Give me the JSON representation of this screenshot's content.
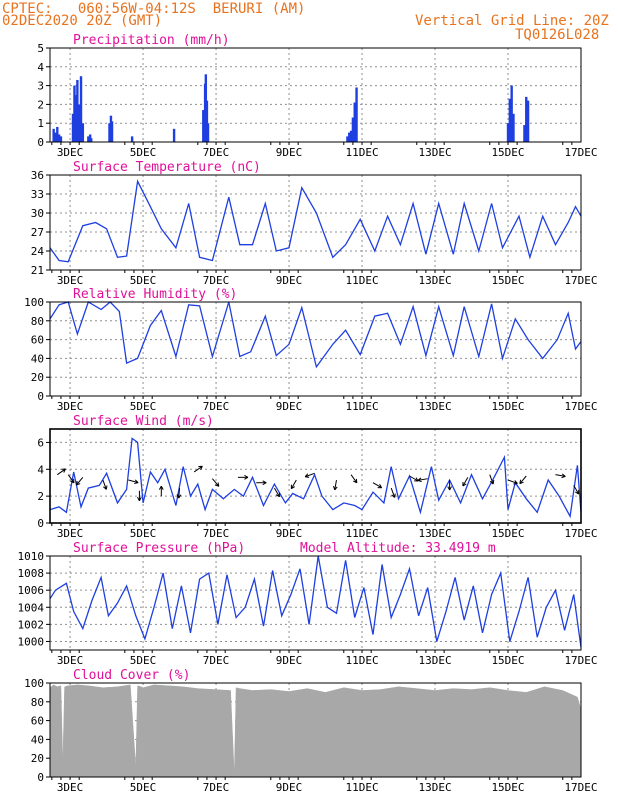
{
  "header": {
    "line1": "CPTEC:   060:56W-04:12S  BERURI (AM)",
    "line2": "02DEC2020 20Z (GMT)",
    "grid_note": "Vertical Grid Line: 20Z",
    "code": "TQ0126L028"
  },
  "colors": {
    "header": "#e8731f",
    "title": "#e0109a",
    "series": "#1f3fe0",
    "cloud": "#a8a8a8",
    "grid": "#909090"
  },
  "x_ticks": [
    "3DEC",
    "5DEC",
    "7DEC",
    "9DEC",
    "11DEC",
    "13DEC",
    "15DEC",
    "17DEC"
  ],
  "chart_data": [
    {
      "type": "bar",
      "title": "Precipitation (mm/h)",
      "ylim": [
        0,
        5
      ],
      "yticks": [
        "0",
        "1",
        "2",
        "3",
        "4",
        "5"
      ],
      "x_range_days": [
        2.45,
        17.0
      ],
      "x": [
        2.55,
        2.6,
        2.65,
        2.7,
        2.75,
        3.08,
        3.12,
        3.15,
        3.18,
        3.2,
        3.25,
        3.3,
        3.35,
        3.5,
        3.55,
        3.58,
        4.08,
        4.12,
        4.15,
        4.7,
        5.85,
        6.65,
        6.7,
        6.72,
        6.75,
        6.78,
        10.6,
        10.65,
        10.7,
        10.75,
        10.8,
        10.85,
        15.0,
        15.05,
        15.1,
        15.15,
        15.45,
        15.5,
        15.55
      ],
      "values": [
        0.7,
        0.5,
        0.8,
        0.4,
        0.3,
        1.5,
        3.0,
        2.5,
        1.2,
        3.3,
        2.0,
        3.5,
        1.0,
        0.3,
        0.4,
        0.2,
        1.0,
        1.4,
        1.1,
        0.3,
        0.7,
        1.7,
        3.1,
        3.6,
        2.2,
        1.0,
        0.3,
        0.5,
        0.6,
        1.3,
        2.1,
        2.9,
        1.0,
        2.3,
        3.0,
        1.5,
        0.9,
        2.4,
        2.2
      ],
      "grid": true
    },
    {
      "type": "line",
      "title": "Surface Temperature (nC)",
      "ylim": [
        21,
        36
      ],
      "yticks": [
        "21",
        "24",
        "27",
        "30",
        "33",
        "36"
      ],
      "x": [
        2.45,
        2.7,
        2.95,
        3.35,
        3.7,
        4.0,
        4.3,
        4.55,
        4.85,
        5.2,
        5.5,
        5.9,
        6.25,
        6.55,
        6.9,
        7.35,
        7.65,
        8.0,
        8.35,
        8.65,
        9.0,
        9.35,
        9.75,
        10.2,
        10.55,
        10.95,
        11.35,
        11.7,
        12.05,
        12.4,
        12.75,
        13.1,
        13.5,
        13.8,
        14.2,
        14.55,
        14.85,
        15.3,
        15.6,
        15.95,
        16.3,
        16.65,
        16.85,
        17.0
      ],
      "values": [
        24.5,
        22.5,
        22.3,
        28.0,
        28.5,
        27.5,
        23.0,
        23.2,
        35.0,
        31.0,
        27.5,
        24.5,
        31.5,
        23.0,
        22.5,
        32.5,
        25.0,
        25.0,
        31.5,
        24.0,
        24.5,
        34.0,
        30.0,
        23.0,
        25.0,
        29.0,
        24.0,
        29.5,
        25.0,
        31.5,
        23.5,
        31.5,
        23.5,
        31.5,
        24.0,
        31.5,
        24.5,
        29.5,
        23.0,
        29.5,
        25.0,
        28.5,
        31.0,
        29.5
      ],
      "grid": true
    },
    {
      "type": "line",
      "title": "Relative Humidity (%)",
      "ylim": [
        0,
        100
      ],
      "yticks": [
        "0",
        "20",
        "40",
        "60",
        "80",
        "100"
      ],
      "x": [
        2.45,
        2.7,
        2.95,
        3.2,
        3.5,
        3.85,
        4.1,
        4.35,
        4.55,
        4.85,
        5.2,
        5.5,
        5.9,
        6.25,
        6.55,
        6.9,
        7.35,
        7.65,
        7.95,
        8.35,
        8.65,
        9.0,
        9.35,
        9.75,
        10.2,
        10.55,
        10.95,
        11.35,
        11.7,
        12.05,
        12.4,
        12.75,
        13.1,
        13.5,
        13.8,
        14.2,
        14.55,
        14.85,
        15.2,
        15.55,
        15.95,
        16.35,
        16.65,
        16.85,
        17.0
      ],
      "values": [
        82,
        97,
        100,
        66,
        100,
        92,
        100,
        90,
        35,
        40,
        75,
        91,
        42,
        97,
        96,
        42,
        100,
        42,
        47,
        85,
        43,
        55,
        94,
        31,
        55,
        70,
        44,
        85,
        88,
        55,
        95,
        43,
        95,
        43,
        95,
        42,
        98,
        40,
        82,
        60,
        40,
        60,
        88,
        50,
        58
      ],
      "grid": true
    },
    {
      "type": "line",
      "title": "Surface Wind (m/s)",
      "ylim": [
        0,
        7
      ],
      "yticks": [
        "0",
        "2",
        "4",
        "6"
      ],
      "x": [
        2.45,
        2.7,
        2.9,
        3.1,
        3.3,
        3.5,
        3.8,
        4.0,
        4.3,
        4.55,
        4.7,
        4.85,
        5.0,
        5.2,
        5.4,
        5.6,
        5.9,
        6.1,
        6.3,
        6.5,
        6.7,
        6.9,
        7.2,
        7.5,
        7.75,
        8.0,
        8.3,
        8.6,
        8.9,
        9.1,
        9.4,
        9.7,
        9.9,
        10.2,
        10.5,
        10.8,
        11.0,
        11.3,
        11.6,
        11.8,
        12.0,
        12.3,
        12.6,
        12.9,
        13.1,
        13.4,
        13.7,
        14.0,
        14.3,
        14.6,
        14.9,
        15.0,
        15.2,
        15.5,
        15.8,
        16.1,
        16.4,
        16.7,
        16.9,
        17.0
      ],
      "values": [
        1.0,
        1.2,
        0.8,
        3.8,
        1.2,
        2.6,
        2.8,
        3.7,
        1.5,
        2.5,
        6.3,
        6.0,
        1.5,
        3.8,
        3.0,
        4.0,
        1.3,
        4.2,
        2.0,
        2.9,
        1.0,
        2.5,
        1.8,
        2.5,
        2.0,
        3.4,
        1.3,
        2.9,
        1.5,
        2.2,
        1.8,
        3.6,
        2.0,
        1.0,
        1.5,
        1.3,
        1.0,
        2.3,
        1.5,
        4.2,
        1.8,
        3.5,
        0.8,
        4.2,
        1.7,
        3.2,
        1.5,
        3.6,
        1.8,
        3.3,
        4.9,
        1.0,
        3.0,
        1.8,
        0.8,
        3.2,
        2.0,
        0.5,
        4.3,
        0.8
      ],
      "arrows": [
        [
          2.65,
          3.6,
          35
        ],
        [
          2.95,
          3.6,
          -55
        ],
        [
          3.35,
          3.4,
          -130
        ],
        [
          3.9,
          3.2,
          -70
        ],
        [
          4.6,
          3.2,
          -15
        ],
        [
          4.9,
          2.4,
          -90
        ],
        [
          5.5,
          2.0,
          90
        ],
        [
          6.0,
          2.6,
          -95
        ],
        [
          6.4,
          3.8,
          35
        ],
        [
          6.9,
          3.3,
          -50
        ],
        [
          7.6,
          3.4,
          0
        ],
        [
          8.1,
          3.0,
          0
        ],
        [
          8.6,
          2.6,
          -60
        ],
        [
          9.2,
          3.2,
          -120
        ],
        [
          9.7,
          3.7,
          -160
        ],
        [
          10.3,
          3.2,
          -100
        ],
        [
          10.7,
          3.6,
          -55
        ],
        [
          11.3,
          3.0,
          -30
        ],
        [
          11.8,
          2.6,
          -70
        ],
        [
          12.3,
          3.5,
          -30
        ],
        [
          12.8,
          3.3,
          -170
        ],
        [
          13.4,
          3.2,
          -90
        ],
        [
          13.9,
          3.4,
          -120
        ],
        [
          14.5,
          3.6,
          -70
        ],
        [
          15.0,
          3.2,
          -20
        ],
        [
          15.5,
          3.5,
          -130
        ],
        [
          16.3,
          3.6,
          -10
        ],
        [
          16.8,
          2.8,
          -60
        ]
      ],
      "grid": true
    },
    {
      "type": "line",
      "title": "Surface Pressure (hPa)",
      "annotation": "Model Altitude: 33.4919 m",
      "ylim": [
        999,
        1010
      ],
      "yticks": [
        "1000",
        "1002",
        "1004",
        "1006",
        "1008",
        "1010"
      ],
      "x": [
        2.45,
        2.6,
        2.9,
        3.1,
        3.35,
        3.6,
        3.85,
        4.05,
        4.3,
        4.55,
        4.8,
        5.05,
        5.3,
        5.55,
        5.8,
        6.05,
        6.3,
        6.55,
        6.8,
        7.05,
        7.3,
        7.55,
        7.8,
        8.05,
        8.3,
        8.55,
        8.8,
        9.05,
        9.3,
        9.55,
        9.8,
        10.05,
        10.3,
        10.55,
        10.8,
        11.05,
        11.3,
        11.55,
        11.8,
        12.05,
        12.3,
        12.55,
        12.8,
        13.05,
        13.3,
        13.55,
        13.8,
        14.05,
        14.3,
        14.55,
        14.8,
        15.05,
        15.3,
        15.55,
        15.8,
        16.05,
        16.3,
        16.55,
        16.8,
        17.0
      ],
      "values": [
        1005.0,
        1006.0,
        1006.8,
        1003.5,
        1001.5,
        1004.8,
        1007.5,
        1003.0,
        1004.5,
        1006.5,
        1003.0,
        1000.3,
        1004.0,
        1008.0,
        1001.5,
        1006.5,
        1001.0,
        1007.3,
        1008.0,
        1002.0,
        1007.8,
        1002.8,
        1004.0,
        1007.3,
        1001.8,
        1008.3,
        1003.0,
        1005.5,
        1008.5,
        1002.0,
        1010.0,
        1004.0,
        1003.3,
        1009.5,
        1002.8,
        1006.3,
        1000.8,
        1009.0,
        1002.8,
        1005.5,
        1008.5,
        1003.0,
        1006.3,
        1000.0,
        1003.5,
        1007.5,
        1002.5,
        1006.5,
        1001.0,
        1005.5,
        1008.0,
        1000.0,
        1003.5,
        1007.5,
        1000.5,
        1004.0,
        1006.0,
        1001.3,
        1005.5,
        999.3
      ],
      "grid": true
    },
    {
      "type": "area",
      "title": "Cloud Cover (%)",
      "ylim": [
        0,
        100
      ],
      "yticks": [
        "0",
        "20",
        "40",
        "60",
        "80",
        "100"
      ],
      "x": [
        2.45,
        2.55,
        2.65,
        2.75,
        2.8,
        2.85,
        2.95,
        3.2,
        3.5,
        3.9,
        4.3,
        4.65,
        4.8,
        4.85,
        4.95,
        5.0,
        5.3,
        5.7,
        6.1,
        6.5,
        7.0,
        7.4,
        7.5,
        7.55,
        7.65,
        8.0,
        8.5,
        9.0,
        9.5,
        10.0,
        10.5,
        11.0,
        11.5,
        12.0,
        12.5,
        13.0,
        13.5,
        14.0,
        14.5,
        15.0,
        15.5,
        16.0,
        16.5,
        16.9,
        17.0
      ],
      "values": [
        95,
        98,
        96,
        97,
        15,
        96,
        97,
        98,
        97,
        95,
        96,
        98,
        10,
        97,
        96,
        95,
        98,
        97,
        96,
        94,
        93,
        92,
        2,
        95,
        94,
        92,
        93,
        91,
        94,
        90,
        95,
        92,
        93,
        96,
        94,
        92,
        94,
        93,
        95,
        92,
        90,
        96,
        92,
        85,
        72
      ],
      "grid": true
    }
  ]
}
